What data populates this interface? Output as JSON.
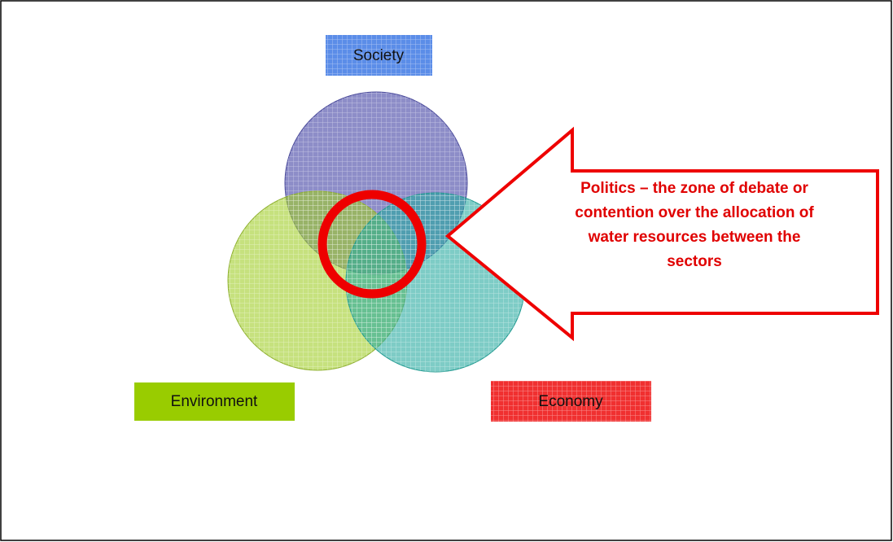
{
  "labels": {
    "society": "Society",
    "environment": "Environment",
    "economy": "Economy"
  },
  "callout": {
    "lines": [
      "Politics – the zone of debate or",
      "contention over the allocation of",
      "water resources between the",
      "sectors"
    ]
  }
}
